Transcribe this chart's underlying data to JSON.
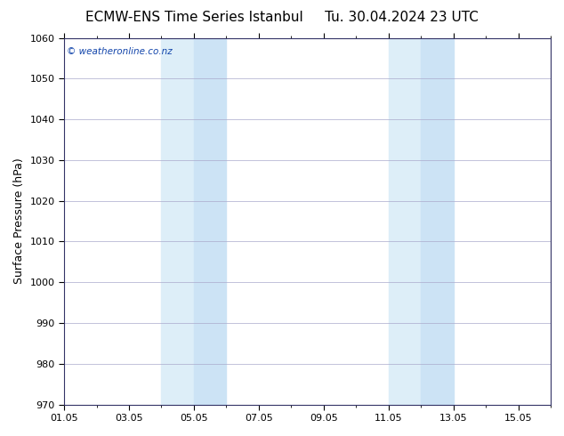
{
  "title": "ECMW-ENS Time Series Istanbul     Tu. 30.04.2024 23 UTC",
  "ylabel": "Surface Pressure (hPa)",
  "ylim": [
    970,
    1060
  ],
  "ytick_step": 10,
  "xlim_start": 0.0,
  "xlim_end": 15.0,
  "xtick_labels": [
    "01.05",
    "03.05",
    "05.05",
    "07.05",
    "09.05",
    "11.05",
    "13.05",
    "15.05"
  ],
  "xtick_positions": [
    0,
    2,
    4,
    6,
    8,
    10,
    12,
    14
  ],
  "shaded_regions": [
    {
      "xmin": 3.0,
      "xmax": 4.0,
      "color": "#ddeef8"
    },
    {
      "xmin": 4.0,
      "xmax": 5.0,
      "color": "#cce3f5"
    },
    {
      "xmin": 10.0,
      "xmax": 11.0,
      "color": "#ddeef8"
    },
    {
      "xmin": 11.0,
      "xmax": 12.0,
      "color": "#cce3f5"
    }
  ],
  "watermark": "© weatheronline.co.nz",
  "watermark_color": "#1144aa",
  "bg_color": "#ffffff",
  "plot_bg_color": "#ffffff",
  "grid_color": "#aaaacc",
  "title_fontsize": 11,
  "label_fontsize": 9,
  "tick_fontsize": 8
}
